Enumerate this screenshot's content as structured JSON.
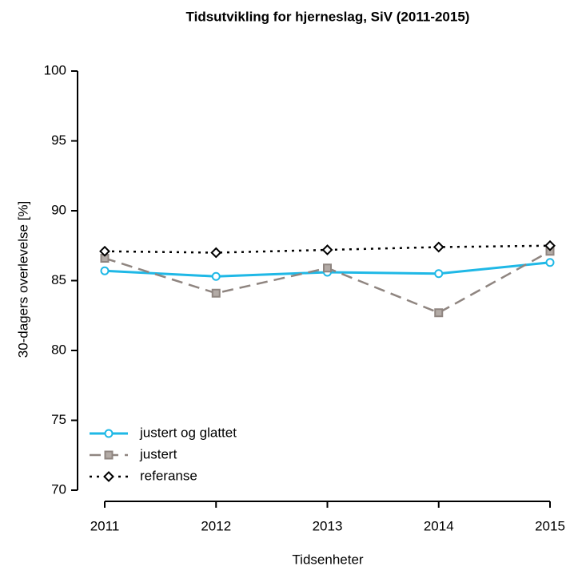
{
  "chart_data": {
    "type": "line",
    "title": "Tidsutvikling for hjerneslag, SiV (2011-2015)",
    "x_label": "Tidsenheter",
    "y_label": "30-dagers overlevelse [%]",
    "x": [
      2011,
      2012,
      2013,
      2014,
      2015
    ],
    "xlim": [
      2011,
      2015
    ],
    "xticks": [
      2011,
      2012,
      2013,
      2014,
      2015
    ],
    "ylim": [
      70,
      100
    ],
    "yticks": [
      70,
      75,
      80,
      85,
      90,
      95,
      100
    ],
    "legend": "bottomleft",
    "series": [
      {
        "name": "justert og glattet",
        "color": "#1fb8e6",
        "dash": "solid",
        "marker": "circle",
        "values": [
          85.7,
          85.3,
          85.6,
          85.5,
          86.3
        ]
      },
      {
        "name": "justert",
        "color": "#8f8580",
        "dash": "dashed",
        "marker": "square",
        "values": [
          86.6,
          84.1,
          85.9,
          82.7,
          87.1
        ]
      },
      {
        "name": "referanse",
        "color": "#000000",
        "dash": "dotted",
        "marker": "diamond",
        "values": [
          87.1,
          87.0,
          87.2,
          87.4,
          87.5
        ]
      }
    ]
  }
}
